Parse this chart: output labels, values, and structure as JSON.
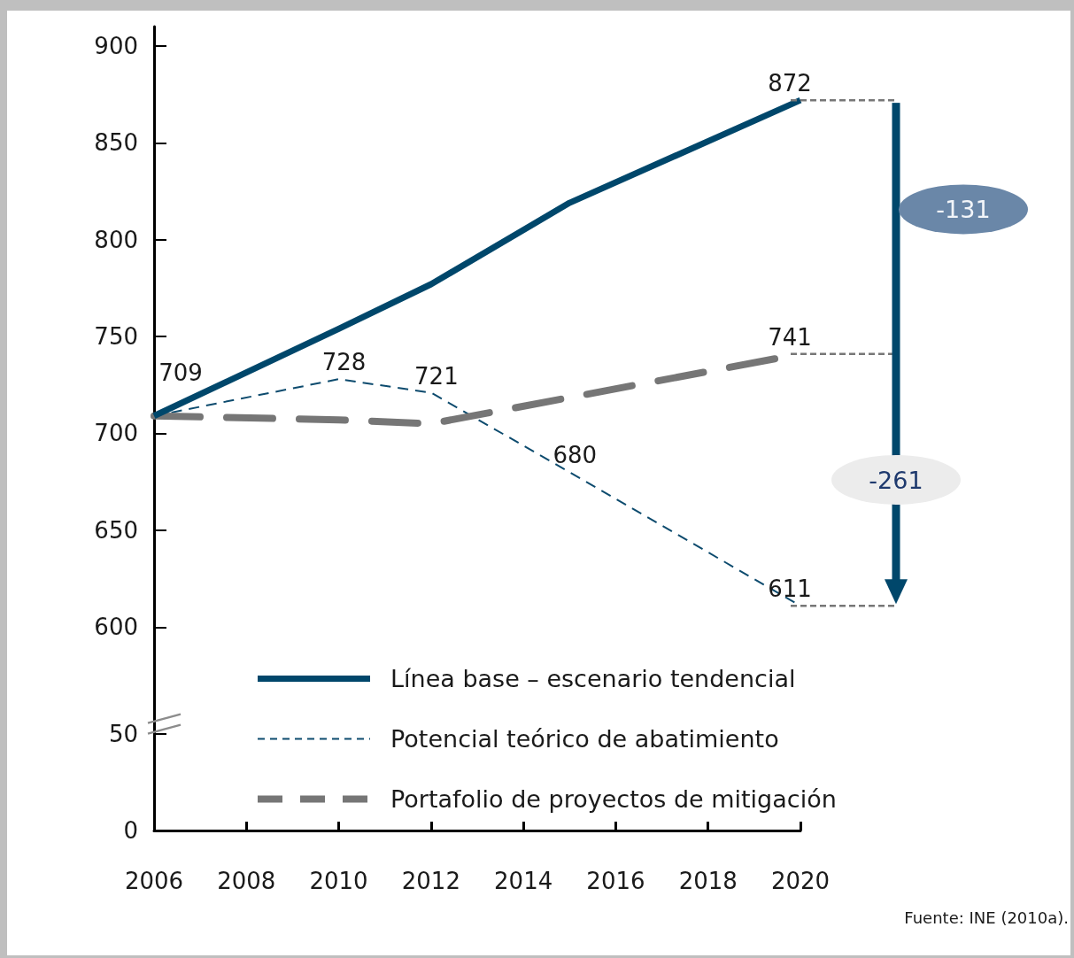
{
  "chart_data": [
    {
      "type": "line",
      "annotations": [
        "-131",
        "-261"
      ],
      "xlim": [
        2006,
        2020
      ],
      "ylim": [
        550,
        910
      ],
      "yticks": [
        600,
        650,
        700,
        750,
        800,
        850,
        900
      ],
      "tick_labels": "y",
      "legend": "bottom",
      "marker": "none",
      "series": [
        {
          "name": "Línea base – escenario tendencial",
          "color": "#00476b",
          "line_style": "solid",
          "x": [
            2006,
            2010,
            2012,
            2015,
            2020
          ],
          "values": [
            709,
            754,
            777,
            819,
            872
          ],
          "value_labels": [
            null,
            null,
            null,
            null,
            "872"
          ]
        },
        {
          "name": "Potencial teórico de abatimiento",
          "color": "#0d4b6e",
          "line_style": "dashed",
          "x": [
            2006,
            2010,
            2012,
            2015,
            2020
          ],
          "values": [
            709,
            728,
            721,
            680,
            611
          ],
          "value_labels": [
            "709",
            "728",
            "721",
            "680",
            "611"
          ]
        },
        {
          "name": "Portafolio de proyectos de mitigación",
          "color": "#767676",
          "line_style": "dashed",
          "x": [
            2006,
            2010,
            2012,
            2020
          ],
          "values": [
            709,
            707,
            705,
            741
          ],
          "value_labels": [
            null,
            null,
            null,
            "741"
          ]
        }
      ]
    },
    {
      "type": "line",
      "annotations": [
        "Fuente: INE (2010a)."
      ],
      "xlim": [
        2006,
        2020
      ],
      "xticks": [
        2006,
        2008,
        2010,
        2012,
        2014,
        2016,
        2018,
        2020
      ],
      "ylim": [
        0,
        55
      ],
      "yticks": [
        0,
        50
      ]
    }
  ]
}
